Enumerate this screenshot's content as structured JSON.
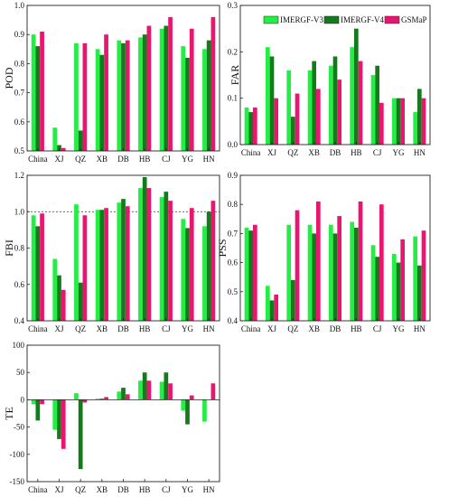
{
  "colors": {
    "IMERGF-V3": "#22ee44",
    "IMERGF-V4": "#157a1c",
    "GSMaP": "#e8166e"
  },
  "legend": [
    "IMERGF-V3",
    "IMERGF-V4",
    "GSMaP"
  ],
  "chart_data": [
    {
      "type": "bar",
      "ylabel": "POD",
      "ylim": [
        0.5,
        1.0
      ],
      "yticks": [
        "0.5",
        "0.6",
        "0.7",
        "0.8",
        "0.9",
        "1.0"
      ],
      "categories": [
        "China",
        "XJ",
        "QZ",
        "XB",
        "DB",
        "HB",
        "CJ",
        "YG",
        "HN"
      ],
      "series": [
        {
          "name": "IMERGF-V3",
          "values": [
            0.9,
            0.58,
            0.87,
            0.85,
            0.88,
            0.89,
            0.92,
            0.86,
            0.85
          ]
        },
        {
          "name": "IMERGF-V4",
          "values": [
            0.86,
            0.52,
            0.57,
            0.83,
            0.87,
            0.9,
            0.93,
            0.82,
            0.88
          ]
        },
        {
          "name": "GSMaP",
          "values": [
            0.91,
            0.51,
            0.87,
            0.9,
            0.88,
            0.93,
            0.96,
            0.92,
            0.96
          ]
        }
      ]
    },
    {
      "type": "bar",
      "ylabel": "FAR",
      "ylim": [
        0.0,
        0.3
      ],
      "yticks": [
        "0.0",
        "0.1",
        "0.2",
        "0.3"
      ],
      "categories": [
        "China",
        "XJ",
        "QZ",
        "XB",
        "DB",
        "HB",
        "CJ",
        "YG",
        "HN"
      ],
      "legend_position": "top-right",
      "series": [
        {
          "name": "IMERGF-V3",
          "values": [
            0.08,
            0.21,
            0.16,
            0.16,
            0.17,
            0.21,
            0.15,
            0.1,
            0.07
          ]
        },
        {
          "name": "IMERGF-V4",
          "values": [
            0.07,
            0.19,
            0.06,
            0.18,
            0.19,
            0.25,
            0.17,
            0.1,
            0.12
          ]
        },
        {
          "name": "GSMaP",
          "values": [
            0.08,
            0.1,
            0.11,
            0.12,
            0.14,
            0.18,
            0.09,
            0.1,
            0.1
          ]
        }
      ]
    },
    {
      "type": "bar",
      "ylabel": "FBI",
      "ylim": [
        0.4,
        1.2
      ],
      "yticks": [
        "0.4",
        "0.6",
        "0.8",
        "1.0",
        "1.2"
      ],
      "reference_line": 1.0,
      "categories": [
        "China",
        "XJ",
        "QZ",
        "XB",
        "DB",
        "HB",
        "CJ",
        "YG",
        "HN"
      ],
      "series": [
        {
          "name": "IMERGF-V3",
          "values": [
            0.98,
            0.74,
            1.04,
            1.01,
            1.05,
            1.13,
            1.08,
            0.96,
            0.92
          ]
        },
        {
          "name": "IMERGF-V4",
          "values": [
            0.92,
            0.65,
            0.61,
            1.01,
            1.07,
            1.19,
            1.11,
            0.91,
            1.0
          ]
        },
        {
          "name": "GSMaP",
          "values": [
            0.99,
            0.57,
            0.98,
            1.02,
            1.03,
            1.13,
            1.06,
            1.02,
            1.06
          ]
        }
      ]
    },
    {
      "type": "bar",
      "ylabel": "PSS",
      "ylim": [
        0.4,
        0.9
      ],
      "yticks": [
        "0.4",
        "0.5",
        "0.6",
        "0.7",
        "0.8",
        "0.9"
      ],
      "categories": [
        "China",
        "XJ",
        "QZ",
        "XB",
        "DB",
        "HB",
        "CJ",
        "YG",
        "HN"
      ],
      "series": [
        {
          "name": "IMERGF-V3",
          "values": [
            0.72,
            0.52,
            0.73,
            0.73,
            0.73,
            0.74,
            0.66,
            0.63,
            0.69
          ]
        },
        {
          "name": "IMERGF-V4",
          "values": [
            0.71,
            0.47,
            0.54,
            0.7,
            0.7,
            0.72,
            0.62,
            0.6,
            0.59
          ]
        },
        {
          "name": "GSMaP",
          "values": [
            0.73,
            0.49,
            0.78,
            0.81,
            0.76,
            0.81,
            0.8,
            0.68,
            0.71
          ]
        }
      ]
    },
    {
      "type": "bar",
      "ylabel": "TE",
      "ylim": [
        -150,
        100
      ],
      "yticks": [
        "-150",
        "-100",
        "-50",
        "0",
        "50",
        "100"
      ],
      "categories": [
        "China",
        "XJ",
        "QZ",
        "XB",
        "DB",
        "HB",
        "CJ",
        "YG",
        "HN"
      ],
      "series": [
        {
          "name": "IMERGF-V3",
          "values": [
            -8,
            -55,
            12,
            2,
            15,
            35,
            33,
            -20,
            -40
          ]
        },
        {
          "name": "IMERGF-V4",
          "values": [
            -38,
            -72,
            -127,
            2,
            22,
            50,
            50,
            -45,
            0
          ]
        },
        {
          "name": "GSMaP",
          "values": [
            -8,
            -90,
            -5,
            5,
            10,
            35,
            30,
            8,
            30
          ]
        }
      ]
    }
  ]
}
